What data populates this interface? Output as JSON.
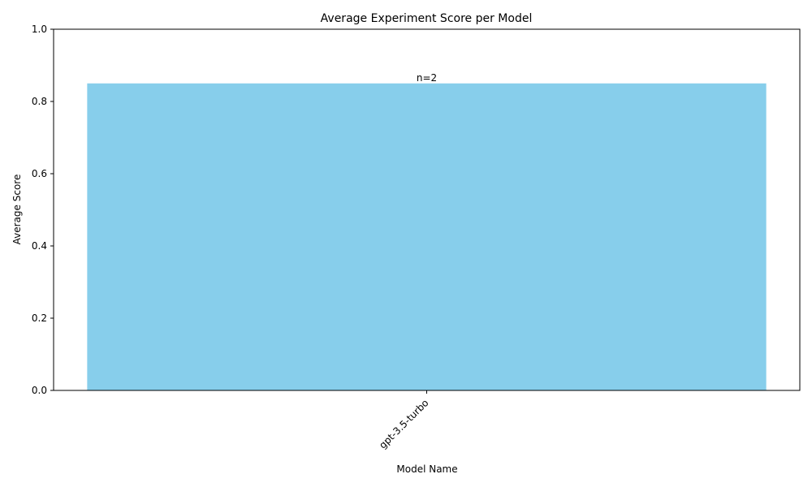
{
  "chart_data": {
    "type": "bar",
    "title": "Average Experiment Score per Model",
    "xlabel": "Model Name",
    "ylabel": "Average Score",
    "categories": [
      "gpt-3.5-turbo"
    ],
    "values": [
      0.85
    ],
    "bar_labels": [
      "n=2"
    ],
    "ylim": [
      0,
      1
    ],
    "yticks": [
      0.0,
      0.2,
      0.4,
      0.6,
      0.8,
      1.0
    ],
    "ytick_labels": [
      "0.0",
      "0.2",
      "0.4",
      "0.6",
      "0.8",
      "1.0"
    ],
    "grid": false,
    "xtick_rotation": 45,
    "colors": {
      "bar": "#87CEEB",
      "axis": "#000000",
      "text": "#000000"
    }
  }
}
